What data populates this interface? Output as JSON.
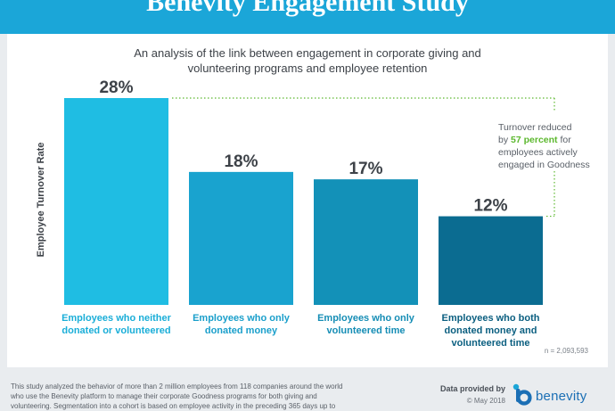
{
  "header": {
    "title": "Benevity Engagement Study"
  },
  "subtitle_lines": [
    "An analysis of the link between engagement in corporate giving and",
    "volunteering programs and employee retention"
  ],
  "chart_data": {
    "type": "bar",
    "ylabel": "Employee Turnover Rate",
    "ylim": [
      0,
      28
    ],
    "grid": false,
    "categories": [
      "Employees who neither donated or volunteered",
      "Employees who only donated money",
      "Employees who only volunteered time",
      "Employees who both donated money and volunteered time"
    ],
    "category_lines": [
      [
        "Employees who neither",
        "donated or volunteered"
      ],
      [
        "Employees who only",
        "donated money"
      ],
      [
        "Employees who only",
        "volunteered time"
      ],
      [
        "Employees who both",
        "donated money and",
        "volunteered time"
      ]
    ],
    "values": [
      28,
      18,
      17,
      12
    ],
    "value_labels": [
      "28%",
      "18%",
      "17%",
      "12%"
    ],
    "bar_colors": [
      "#1fbde3",
      "#19a3cf",
      "#1391b8",
      "#0b6c91"
    ],
    "label_colors": [
      "#1aaed8",
      "#1a9fcb",
      "#158db5",
      "#0b5f80"
    ]
  },
  "annotation": {
    "line1": "Turnover reduced",
    "line2_prefix": "by ",
    "line2_emphasis": "57 percent",
    "line2_suffix": " for",
    "line3": "employees actively",
    "line4": "engaged in Goodness"
  },
  "sample_note": "n = 2,093,593",
  "footer": {
    "lines": [
      "This study analyzed the behavior of more than 2 million employees from 118 companies around the world",
      "who use the Benevity platform to manage their corporate Goodness programs for both giving and",
      "volunteering. Segmentation into a cohort is based on employee activity in the preceding 365 days up to"
    ],
    "provided_by": "Data provided by",
    "copyright": "© May 2018",
    "logo_text": "benevity"
  },
  "colors": {
    "header": "#1ba6d8",
    "accent_green": "#5cb82e",
    "brand_blue": "#1b6fb5"
  }
}
